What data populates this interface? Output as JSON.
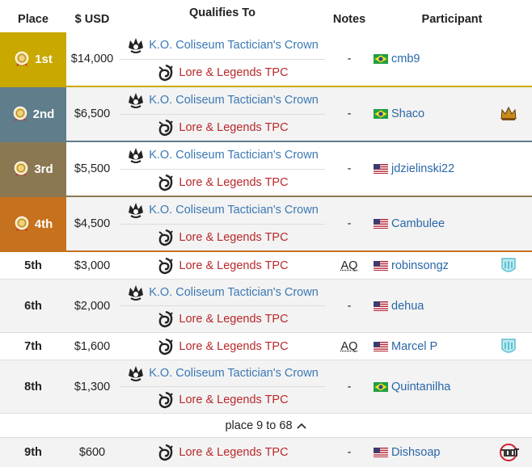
{
  "table": {
    "columns": [
      "Place",
      "$ USD",
      "Qualifies To",
      "Notes",
      "Participant"
    ],
    "rows": [
      {
        "place": "1st",
        "prize": "$14,000",
        "qualifies": [
          "K.O. Coliseum Tactician's Crown",
          "Lore & Legends TPC"
        ],
        "notes": "-",
        "participant": "cmb9"
      },
      {
        "place": "2nd",
        "prize": "$6,500",
        "qualifies": [
          "K.O. Coliseum Tactician's Crown",
          "Lore & Legends TPC"
        ],
        "notes": "-",
        "participant": "Shaco"
      },
      {
        "place": "3rd",
        "prize": "$5,500",
        "qualifies": [
          "K.O. Coliseum Tactician's Crown",
          "Lore & Legends TPC"
        ],
        "notes": "-",
        "participant": "jdzielinski22"
      },
      {
        "place": "4th",
        "prize": "$4,500",
        "qualifies": [
          "K.O. Coliseum Tactician's Crown",
          "Lore & Legends TPC"
        ],
        "notes": "-",
        "participant": "Cambulee"
      },
      {
        "place": "5th",
        "prize": "$3,000",
        "qualifies": [
          "Lore & Legends TPC"
        ],
        "notes": "AQ",
        "participant": "robinsongz"
      },
      {
        "place": "6th",
        "prize": "$2,000",
        "qualifies": [
          "K.O. Coliseum Tactician's Crown",
          "Lore & Legends TPC"
        ],
        "notes": "-",
        "participant": "dehua"
      },
      {
        "place": "7th",
        "prize": "$1,600",
        "qualifies": [
          "Lore & Legends TPC"
        ],
        "notes": "AQ",
        "participant": "Marcel P"
      },
      {
        "place": "8th",
        "prize": "$1,300",
        "qualifies": [
          "K.O. Coliseum Tactician's Crown",
          "Lore & Legends TPC"
        ],
        "notes": "-",
        "participant": "Quintanilha"
      },
      {
        "place": "9th",
        "prize": "$600",
        "qualifies": [
          "Lore & Legends TPC"
        ],
        "notes": "-",
        "participant": "Dishsoap"
      }
    ],
    "toggle": "place 9 to 68"
  }
}
